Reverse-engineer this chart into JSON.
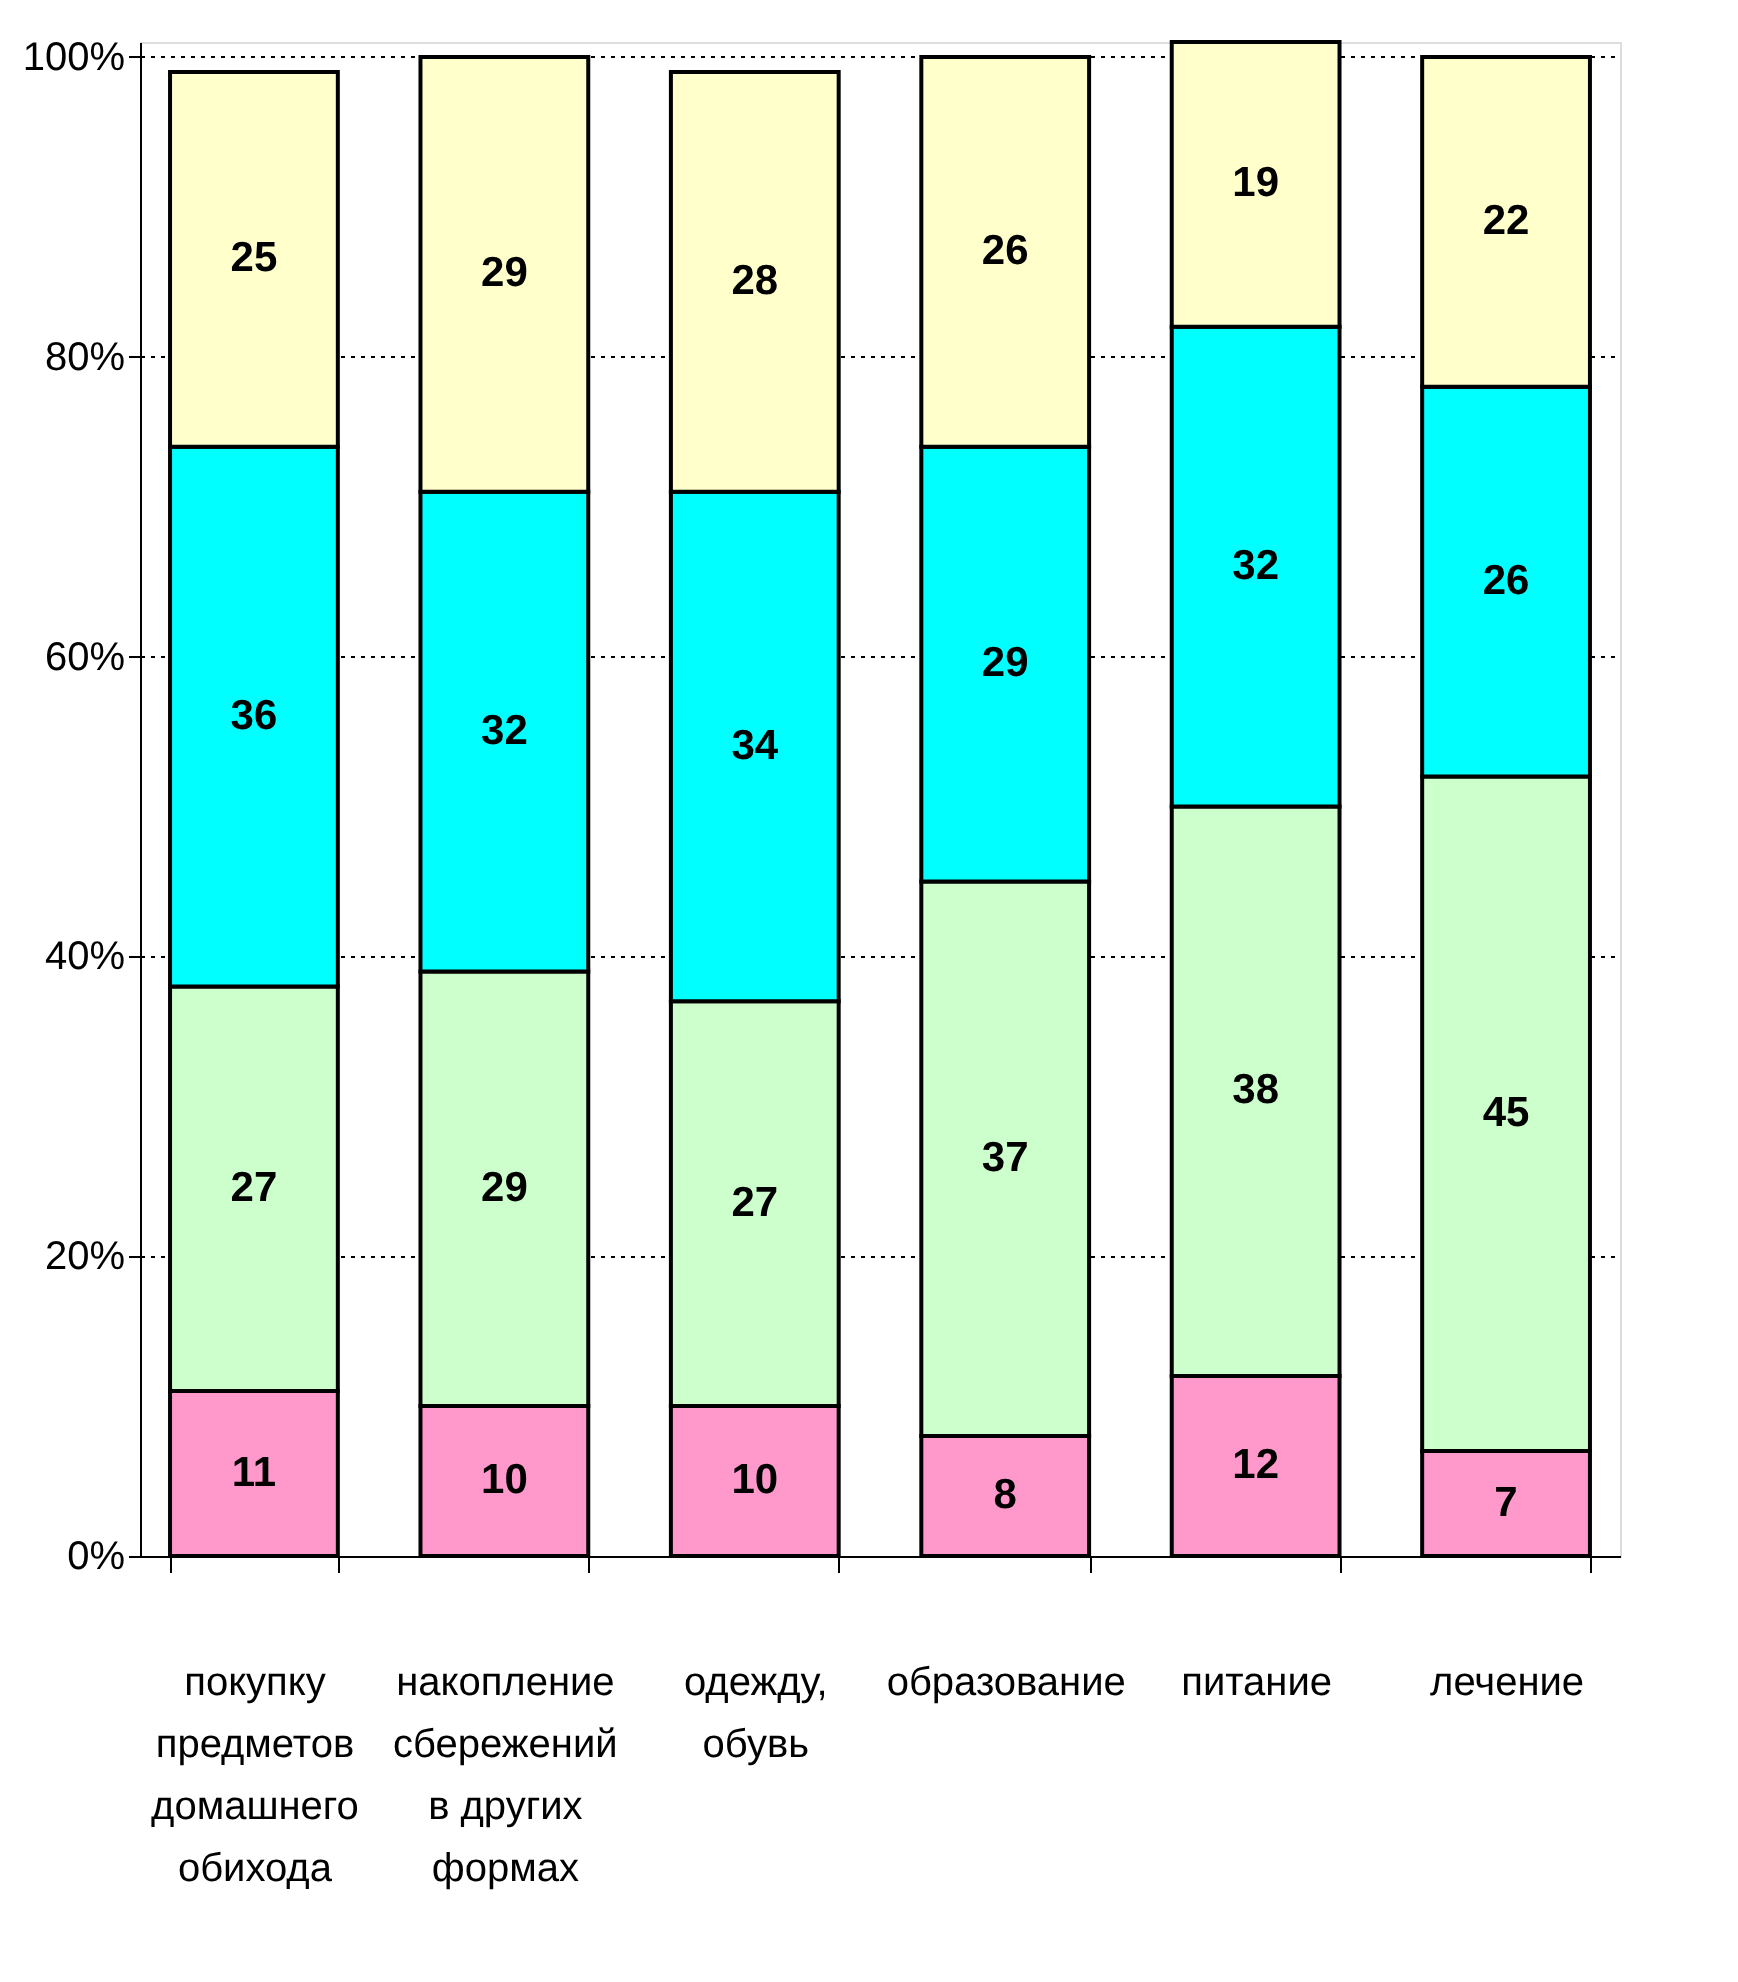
{
  "chart_data": {
    "type": "bar",
    "stacked": true,
    "data_labels": true,
    "grid": "y",
    "legend": false,
    "categories": [
      "покупку\nпредметов\nдомашнего\nобихода",
      "накопление\nсбережений\nв других\nформах",
      "одежду,\nобувь",
      "образование",
      "питание",
      "лечение"
    ],
    "series": [
      {
        "color": "#ff99cc",
        "values": [
          11,
          10,
          10,
          8,
          12,
          7
        ]
      },
      {
        "color": "#ccffcc",
        "values": [
          27,
          29,
          27,
          37,
          38,
          45
        ]
      },
      {
        "color": "#00ffff",
        "values": [
          36,
          32,
          34,
          29,
          32,
          26
        ]
      },
      {
        "color": "#ffffcc",
        "values": [
          25,
          29,
          28,
          26,
          19,
          22
        ]
      }
    ],
    "ylim": [
      0,
      101
    ],
    "yticks": [
      {
        "value": 0,
        "label": "0%"
      },
      {
        "value": 20,
        "label": "20%"
      },
      {
        "value": 40,
        "label": "40%"
      },
      {
        "value": 60,
        "label": "60%"
      },
      {
        "value": 80,
        "label": "80%"
      },
      {
        "value": 100,
        "label": "100%"
      }
    ]
  }
}
